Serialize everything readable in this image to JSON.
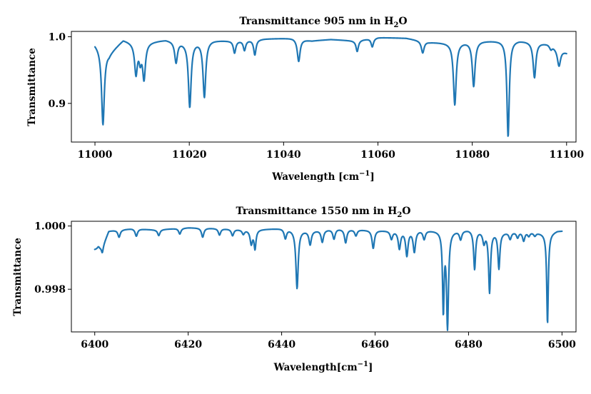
{
  "colors": {
    "series": "#1f77b4"
  },
  "chart_data": [
    {
      "type": "line",
      "title": "Transmittance 905 nm in H",
      "title_sub": "2",
      "title_tail": "O",
      "xlabel": "Wavelength [cm",
      "xlabel_sup": "−1",
      "xlabel_tail": "]",
      "ylabel": "Transmittance",
      "xlim": [
        10995,
        11102
      ],
      "ylim": [
        0.842,
        1.008
      ],
      "xticks": [
        11000,
        11020,
        11040,
        11060,
        11080,
        11100
      ],
      "xtick_labels": [
        "11000",
        "11020",
        "11040",
        "11060",
        "11080",
        "11100"
      ],
      "yticks": [
        0.9,
        1.0
      ],
      "ytick_labels": [
        "0.9",
        "1.0"
      ],
      "series": [
        {
          "baseline": [
            [
              11000,
              0.99
            ],
            [
              11003,
              0.975
            ],
            [
              11006,
              0.996
            ],
            [
              11009,
              0.99
            ],
            [
              11012,
              0.993
            ],
            [
              11015,
              0.996
            ],
            [
              11019,
              0.992
            ],
            [
              11025,
              0.995
            ],
            [
              11030,
              0.994
            ],
            [
              11036,
              0.997
            ],
            [
              11042,
              0.998
            ],
            [
              11046,
              0.994
            ],
            [
              11050,
              0.996
            ],
            [
              11055,
              0.994
            ],
            [
              11060,
              0.999
            ],
            [
              11066,
              0.998
            ],
            [
              11071,
              0.992
            ],
            [
              11075,
              0.991
            ],
            [
              11082,
              0.994
            ],
            [
              11090,
              0.995
            ],
            [
              11096,
              0.99
            ],
            [
              11100,
              0.976
            ]
          ],
          "lines": [
            [
              11001.7,
              0.868,
              0.35
            ],
            [
              11008.7,
              0.945,
              0.35
            ],
            [
              11009.6,
              0.968,
              0.3
            ],
            [
              11010.4,
              0.938,
              0.35
            ],
            [
              11017.2,
              0.962,
              0.35
            ],
            [
              11020.1,
              0.895,
              0.35
            ],
            [
              11023.2,
              0.91,
              0.35
            ],
            [
              11029.6,
              0.976,
              0.3
            ],
            [
              11031.7,
              0.98,
              0.3
            ],
            [
              11033.9,
              0.973,
              0.3
            ],
            [
              11043.2,
              0.963,
              0.35
            ],
            [
              11055.6,
              0.978,
              0.3
            ],
            [
              11058.8,
              0.985,
              0.3
            ],
            [
              11069.5,
              0.976,
              0.35
            ],
            [
              11076.3,
              0.898,
              0.35
            ],
            [
              11080.3,
              0.926,
              0.35
            ],
            [
              11087.6,
              0.85,
              0.3
            ],
            [
              11093.2,
              0.939,
              0.35
            ],
            [
              11096.7,
              0.982,
              0.3
            ],
            [
              11098.4,
              0.956,
              0.4
            ]
          ]
        }
      ]
    },
    {
      "type": "line",
      "title": "Transmittance 1550 nm in H",
      "title_sub": "2",
      "title_tail": "O",
      "xlabel": "Wavelength[cm",
      "xlabel_sup": "−1",
      "xlabel_tail": "]",
      "ylabel": "Transmittance",
      "xlim": [
        6395,
        6503
      ],
      "ylim": [
        0.99665,
        1.00015
      ],
      "xticks": [
        6400,
        6420,
        6440,
        6460,
        6480,
        6500
      ],
      "xtick_labels": [
        "6400",
        "6420",
        "6440",
        "6460",
        "6480",
        "6500"
      ],
      "yticks": [
        0.998,
        1.0
      ],
      "ytick_labels": [
        "0.998",
        "1.000"
      ],
      "series": [
        {
          "baseline": [
            [
              6400,
              0.99925
            ],
            [
              6401.5,
              0.9993
            ],
            [
              6403,
              0.99985
            ],
            [
              6408,
              0.99992
            ],
            [
              6413,
              0.99988
            ],
            [
              6420,
              0.99995
            ],
            [
              6426,
              0.99993
            ],
            [
              6433,
              0.99988
            ],
            [
              6440,
              0.99993
            ],
            [
              6446,
              0.99985
            ],
            [
              6452,
              0.99992
            ],
            [
              6458,
              0.99988
            ],
            [
              6465,
              0.99985
            ],
            [
              6470,
              0.99988
            ],
            [
              6476,
              0.99985
            ],
            [
              6480,
              0.9999
            ],
            [
              6487,
              0.9998
            ],
            [
              6492,
              0.99985
            ],
            [
              6497,
              0.99975
            ],
            [
              6499,
              0.99985
            ],
            [
              6500,
              0.99985
            ]
          ],
          "lines": [
            [
              6400.8,
              0.99935,
              0.25
            ],
            [
              6401.6,
              0.99915,
              0.2
            ],
            [
              6405.2,
              0.99965,
              0.3
            ],
            [
              6408.9,
              0.99968,
              0.3
            ],
            [
              6413.7,
              0.9997,
              0.3
            ],
            [
              6418.2,
              0.99975,
              0.3
            ],
            [
              6423.1,
              0.99965,
              0.3
            ],
            [
              6426.7,
              0.99972,
              0.3
            ],
            [
              6429.5,
              0.9997,
              0.3
            ],
            [
              6431.8,
              0.99975,
              0.3
            ],
            [
              6433.5,
              0.99945,
              0.3
            ],
            [
              6434.3,
              0.9993,
              0.25
            ],
            [
              6440.8,
              0.99962,
              0.3
            ],
            [
              6443.3,
              0.99803,
              0.3
            ],
            [
              6446.1,
              0.99942,
              0.3
            ],
            [
              6448.7,
              0.9995,
              0.3
            ],
            [
              6451.2,
              0.9996,
              0.3
            ],
            [
              6453.7,
              0.99948,
              0.3
            ],
            [
              6455.9,
              0.9997,
              0.3
            ],
            [
              6459.6,
              0.9993,
              0.3
            ],
            [
              6463.5,
              0.9996,
              0.3
            ],
            [
              6465.2,
              0.9993,
              0.3
            ],
            [
              6466.8,
              0.99908,
              0.3
            ],
            [
              6468.4,
              0.9992,
              0.3
            ],
            [
              6470.5,
              0.9996,
              0.3
            ],
            [
              6474.6,
              0.99736,
              0.2
            ],
            [
              6475.5,
              0.99683,
              0.25
            ],
            [
              6478.3,
              0.9996,
              0.3
            ],
            [
              6481.3,
              0.99865,
              0.25
            ],
            [
              6483.3,
              0.9995,
              0.3
            ],
            [
              6484.5,
              0.99792,
              0.25
            ],
            [
              6486.5,
              0.99867,
              0.25
            ],
            [
              6488.9,
              0.9996,
              0.3
            ],
            [
              6490.5,
              0.99965,
              0.3
            ],
            [
              6491.8,
              0.99955,
              0.3
            ],
            [
              6492.9,
              0.9997,
              0.3
            ],
            [
              6494.2,
              0.9997,
              0.3
            ],
            [
              6496.9,
              0.9969,
              0.2
            ]
          ]
        }
      ]
    }
  ]
}
